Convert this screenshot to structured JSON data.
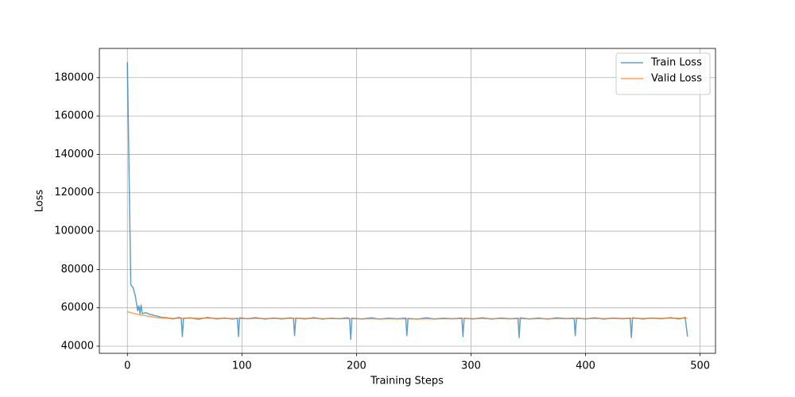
{
  "chart_data": {
    "type": "line",
    "xlabel": "Training Steps",
    "ylabel": "Loss",
    "xlim": [
      -24.45,
      513.45
    ],
    "xticks": [
      0,
      100,
      200,
      300,
      400,
      500
    ],
    "ylim": [
      36275,
      195225
    ],
    "yticks": [
      40000,
      60000,
      80000,
      100000,
      120000,
      140000,
      160000,
      180000
    ],
    "grid": true,
    "legend": "upper right",
    "series": [
      {
        "name": "Train Loss",
        "color": "#1f77b4",
        "x": [
          0,
          1,
          2,
          3,
          5,
          7,
          9,
          10,
          11,
          12,
          13,
          16,
          20,
          25,
          30,
          35,
          40,
          45,
          47,
          48,
          49,
          55,
          62,
          70,
          78,
          85,
          92,
          96,
          97,
          98,
          105,
          112,
          120,
          128,
          135,
          142,
          145,
          146,
          147,
          155,
          163,
          170,
          178,
          185,
          192,
          194,
          195,
          196,
          205,
          213,
          220,
          228,
          236,
          243,
          244,
          245,
          253,
          261,
          268,
          276,
          284,
          292,
          293,
          294,
          302,
          310,
          318,
          326,
          334,
          341,
          342,
          343,
          351,
          359,
          367,
          375,
          383,
          390,
          391,
          392,
          400,
          408,
          416,
          424,
          432,
          439,
          440,
          441,
          450,
          458,
          466,
          474,
          482,
          487,
          489
        ],
        "values": [
          188000,
          150000,
          110000,
          72000,
          70500,
          66000,
          58500,
          61000,
          57000,
          61500,
          57000,
          57500,
          56500,
          55800,
          55000,
          54800,
          54200,
          55000,
          54600,
          45000,
          54500,
          54800,
          54000,
          55000,
          54200,
          54700,
          54100,
          54600,
          45000,
          54800,
          54300,
          54900,
          54100,
          54700,
          54200,
          54800,
          54500,
          45500,
          54700,
          54200,
          54900,
          54100,
          54600,
          54300,
          54800,
          54400,
          43500,
          54600,
          54200,
          54800,
          54100,
          54600,
          54300,
          54700,
          45500,
          54500,
          54100,
          54800,
          54200,
          54600,
          54300,
          54700,
          45000,
          54600,
          54200,
          54800,
          54100,
          54700,
          54300,
          54600,
          44500,
          54800,
          54200,
          54700,
          54100,
          54800,
          54400,
          54600,
          45500,
          54700,
          54200,
          54800,
          54100,
          54700,
          54300,
          54600,
          44500,
          54800,
          54200,
          54700,
          54300,
          54900,
          54200,
          55000,
          45000
        ]
      },
      {
        "name": "Valid Loss",
        "color": "#ff7f0e",
        "x": [
          0,
          5,
          10,
          15,
          20,
          25,
          30,
          40,
          60,
          100,
          150,
          200,
          250,
          300,
          350,
          400,
          450,
          489
        ],
        "values": [
          58000,
          57200,
          56500,
          56000,
          55400,
          55000,
          54700,
          54500,
          54600,
          54400,
          54500,
          54300,
          54200,
          54400,
          54300,
          54400,
          54500,
          54600
        ]
      }
    ]
  }
}
